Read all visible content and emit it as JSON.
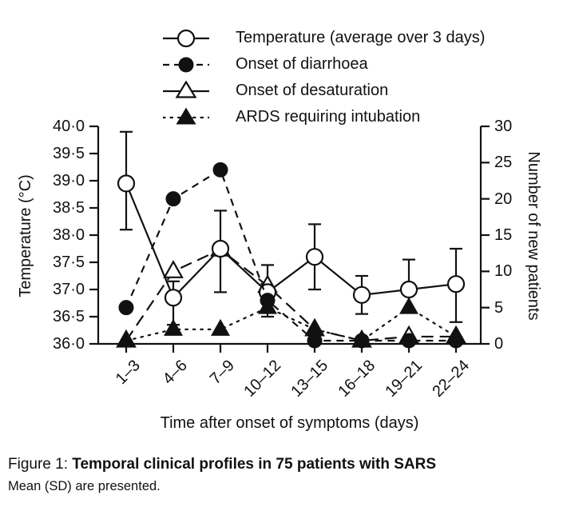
{
  "chart_data": {
    "type": "line",
    "categories": [
      "1–3",
      "4–6",
      "7–9",
      "10–12",
      "13–15",
      "16–18",
      "19–21",
      "22–24"
    ],
    "xlabel": "Time after onset of symptoms (days)",
    "left_axis": {
      "label": "Temperature (°C)",
      "min": 36,
      "max": 40,
      "tick_values": [
        40,
        39.5,
        39,
        38.5,
        38,
        37.5,
        37,
        36.5,
        36
      ],
      "tick_labels": [
        "40·0",
        "39·5",
        "39·0",
        "38·5",
        "38·0",
        "37·5",
        "37·0",
        "36·5",
        "36·0"
      ]
    },
    "right_axis": {
      "label": "Number of new patients",
      "min": 0,
      "max": 30,
      "tick_values": [
        30,
        25,
        20,
        15,
        10,
        5,
        0
      ],
      "tick_labels": [
        "30",
        "25",
        "20",
        "15",
        "10",
        "5",
        "0"
      ]
    },
    "grid": false,
    "legend_position": "top",
    "series": [
      {
        "name": "Temperature (average over 3 days)",
        "axis": "left",
        "marker": "circle-open",
        "line": "solid",
        "values": [
          38.95,
          36.85,
          37.75,
          36.95,
          37.6,
          36.9,
          37.0,
          37.1
        ],
        "err_lo": [
          38.1,
          36.35,
          36.95,
          36.5,
          37.0,
          36.55,
          36.6,
          36.4
        ],
        "err_hi": [
          39.9,
          37.15,
          38.45,
          37.45,
          38.2,
          37.25,
          37.55,
          37.75
        ]
      },
      {
        "name": "Onset of diarrhoea",
        "axis": "right",
        "marker": "circle-filled",
        "line": "dash",
        "values": [
          5,
          20,
          24,
          6,
          0,
          0,
          0,
          0
        ]
      },
      {
        "name": "Onset of desaturation",
        "axis": "right",
        "marker": "triangle-open",
        "line": "longdash",
        "values": [
          0,
          10,
          13,
          8,
          2,
          0,
          1,
          1
        ]
      },
      {
        "name": "ARDS requiring intubation",
        "axis": "right",
        "marker": "triangle-filled",
        "line": "dot",
        "values": [
          0,
          2,
          2,
          5,
          2,
          0,
          5,
          1
        ]
      }
    ]
  },
  "caption": {
    "prefix": "Figure 1: ",
    "title": "Temporal clinical profiles in 75 patients with SARS",
    "note": "Mean (SD) are presented."
  },
  "colors": {
    "ink": "#111111",
    "background": "#ffffff"
  }
}
